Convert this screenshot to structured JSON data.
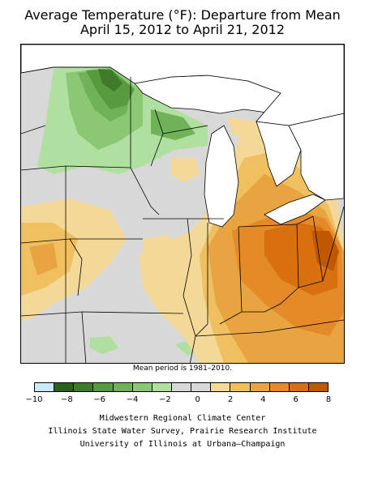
{
  "title": {
    "line1": "Average Temperature (°F): Departure from Mean",
    "line2": "April 15, 2012 to April 21, 2012"
  },
  "mean_note": "Mean period is 1981–2010.",
  "legend": {
    "colors": [
      "#c8eafa",
      "#2c5e1c",
      "#3d7a2a",
      "#579a40",
      "#6fb257",
      "#8cc874",
      "#b0e0a0",
      "#d8d8d8",
      "#d8d8d8",
      "#f4d898",
      "#f0c060",
      "#e8a440",
      "#e48a28",
      "#d87010",
      "#c05800"
    ],
    "ticks": [
      "−10",
      "−8",
      "−6",
      "−4",
      "−2",
      "0",
      "2",
      "4",
      "6",
      "8"
    ]
  },
  "credits": [
    "Midwestern Regional Climate Center",
    "Illinois State Water Survey, Prairie Research Institute",
    "University of Illinois at Urbana–Champaign"
  ],
  "map": {
    "colors": {
      "neutral": "#d8d8d8",
      "warm1": "#f4d898",
      "warm2": "#f0c060",
      "warm3": "#e8a440",
      "warm4": "#e48a28",
      "warm5": "#d87010",
      "warm6": "#c05800",
      "cool1": "#b0e0a0",
      "cool2": "#8cc874",
      "cool3": "#6fb257",
      "cool4": "#579a40",
      "cool5": "#3d7a2a",
      "water": "#ffffff"
    }
  }
}
